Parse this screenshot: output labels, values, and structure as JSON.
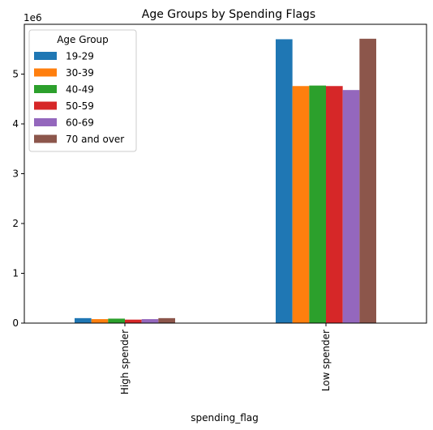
{
  "chart_data": {
    "type": "bar",
    "title": "Age Groups by Spending Flags",
    "xlabel": "spending_flag",
    "ylabel": "",
    "offset_label": "1e6",
    "categories": [
      "High spender",
      "Low spender"
    ],
    "ylim": [
      0,
      6000000
    ],
    "yticks": [
      0,
      1000000,
      2000000,
      3000000,
      4000000,
      5000000
    ],
    "ytick_labels": [
      "0",
      "1",
      "2",
      "3",
      "4",
      "5"
    ],
    "legend": {
      "title": "Age Group",
      "position": "top-left"
    },
    "series": [
      {
        "name": "19-29",
        "color": "#1f77b4",
        "values": [
          100000,
          5700000
        ]
      },
      {
        "name": "30-39",
        "color": "#ff7f0e",
        "values": [
          80000,
          4760000
        ]
      },
      {
        "name": "40-49",
        "color": "#2ca02c",
        "values": [
          90000,
          4770000
        ]
      },
      {
        "name": "50-59",
        "color": "#d62728",
        "values": [
          70000,
          4760000
        ]
      },
      {
        "name": "60-69",
        "color": "#9467bd",
        "values": [
          80000,
          4680000
        ]
      },
      {
        "name": "70 and over",
        "color": "#8c564b",
        "values": [
          100000,
          5710000
        ]
      }
    ]
  }
}
